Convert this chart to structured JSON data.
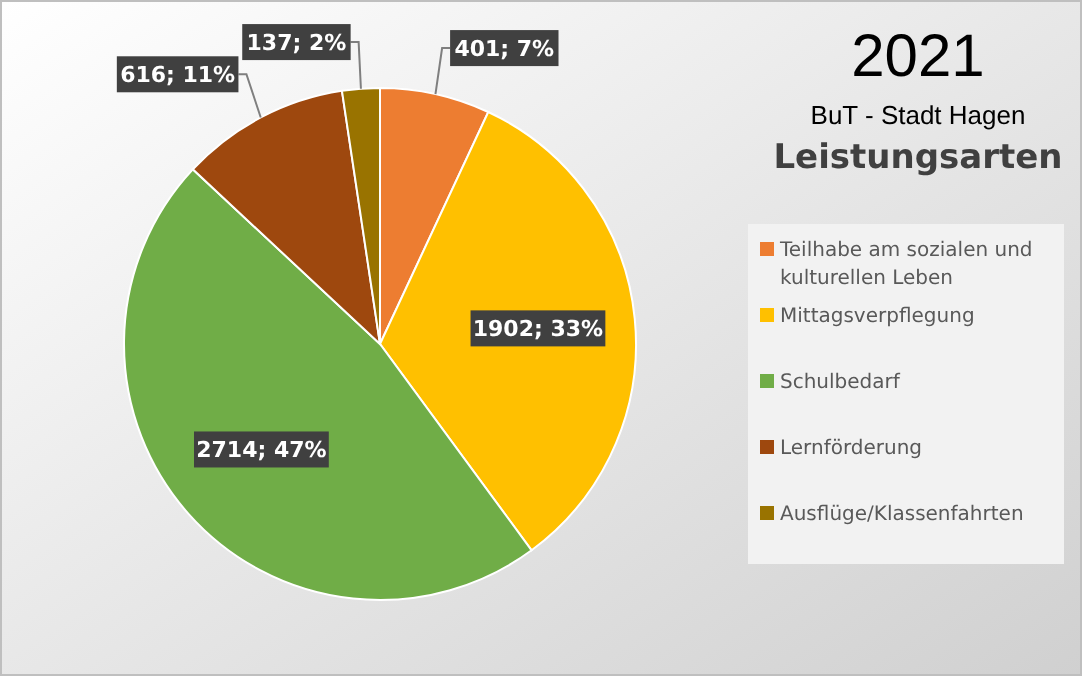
{
  "chart_data": {
    "type": "pie",
    "title": "2021",
    "subtitle": "BuT - Stadt Hagen",
    "legend_title": "Leistungsarten",
    "categories": [
      "Teilhabe am sozialen und kulturellen Leben",
      "Mittagsverpflegung",
      "Schulbedarf",
      "Lernförderung",
      "Ausflüge/Klassenfahrten"
    ],
    "values": [
      401,
      1902,
      2714,
      616,
      137
    ],
    "colors": [
      "#ed7d31",
      "#ffc000",
      "#70ad47",
      "#9e480e",
      "#997300"
    ],
    "value_labels": [
      "401; 7%",
      "1902; 33%",
      "2714; 47%",
      "616; 11%",
      "137; 2%"
    ],
    "legend": "right"
  }
}
